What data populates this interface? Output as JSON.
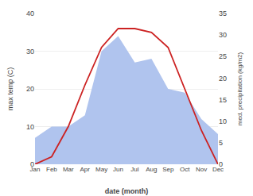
{
  "chart_data": {
    "type": "line",
    "xlabel": "date (month)",
    "ylabel": "max temp (C)",
    "y2label": "med. precipitation (kg/m2)",
    "categories": [
      "Jan",
      "Feb",
      "Mar",
      "Apr",
      "May",
      "Jun",
      "Jul",
      "Aug",
      "Sep",
      "Oct",
      "Nov",
      "Dec"
    ],
    "series": [
      {
        "type": "area",
        "color": "#b0c4ee",
        "values": [
          7,
          10,
          10,
          13,
          30,
          34,
          27,
          28,
          20,
          19,
          12,
          8
        ]
      },
      {
        "type": "line",
        "color": "#cc2222",
        "values": [
          0,
          2,
          10,
          21,
          31,
          36,
          36,
          35,
          31,
          20,
          9,
          0
        ]
      }
    ],
    "ylim": [
      0,
      40
    ],
    "yticks": [
      0,
      10,
      20,
      30,
      40
    ],
    "y2lim": [
      0,
      35
    ],
    "y2ticks": [
      0,
      5,
      10,
      15,
      20,
      25,
      30,
      35
    ],
    "grid": true
  }
}
